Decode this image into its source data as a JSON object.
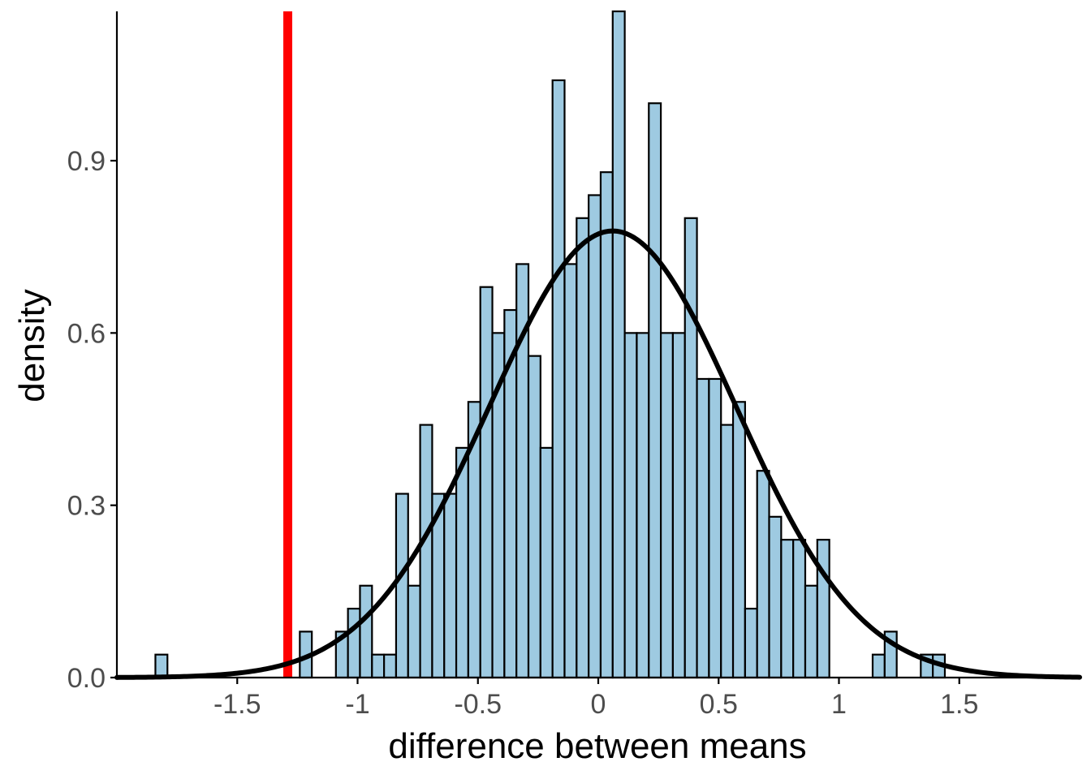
{
  "chart_data": {
    "type": "histogram",
    "xlabel": "difference between means",
    "ylabel": "density",
    "xlim": [
      -2.0,
      2.0
    ],
    "ylim": [
      0,
      1.16
    ],
    "x_ticks": [
      -1.5,
      -1,
      -0.5,
      0,
      0.5,
      1,
      1.5
    ],
    "x_tick_labels": [
      "-1.5",
      "-1",
      "-0.5",
      "0",
      "0.5",
      "1",
      "1.5"
    ],
    "y_ticks": [
      0,
      0.3,
      0.6,
      0.9
    ],
    "y_tick_labels": [
      "0.0",
      "0.3",
      "0.6",
      "0.9"
    ],
    "grid": false,
    "bin_width": 0.05,
    "bins": [
      {
        "x0": -1.84,
        "density": 0.04
      },
      {
        "x0": -1.24,
        "density": 0.08
      },
      {
        "x0": -1.09,
        "density": 0.08
      },
      {
        "x0": -1.04,
        "density": 0.12
      },
      {
        "x0": -0.99,
        "density": 0.16
      },
      {
        "x0": -0.94,
        "density": 0.04
      },
      {
        "x0": -0.89,
        "density": 0.04
      },
      {
        "x0": -0.84,
        "density": 0.32
      },
      {
        "x0": -0.79,
        "density": 0.16
      },
      {
        "x0": -0.74,
        "density": 0.44
      },
      {
        "x0": -0.69,
        "density": 0.32
      },
      {
        "x0": -0.64,
        "density": 0.32
      },
      {
        "x0": -0.59,
        "density": 0.4
      },
      {
        "x0": -0.54,
        "density": 0.48
      },
      {
        "x0": -0.49,
        "density": 0.68
      },
      {
        "x0": -0.44,
        "density": 0.6
      },
      {
        "x0": -0.39,
        "density": 0.64
      },
      {
        "x0": -0.34,
        "density": 0.72
      },
      {
        "x0": -0.29,
        "density": 0.56
      },
      {
        "x0": -0.24,
        "density": 0.4
      },
      {
        "x0": -0.19,
        "density": 1.04
      },
      {
        "x0": -0.14,
        "density": 0.72
      },
      {
        "x0": -0.09,
        "density": 0.8
      },
      {
        "x0": -0.04,
        "density": 0.84
      },
      {
        "x0": 0.01,
        "density": 0.88
      },
      {
        "x0": 0.06,
        "density": 1.16
      },
      {
        "x0": 0.11,
        "density": 0.6
      },
      {
        "x0": 0.16,
        "density": 0.6
      },
      {
        "x0": 0.21,
        "density": 1.0
      },
      {
        "x0": 0.26,
        "density": 0.6
      },
      {
        "x0": 0.31,
        "density": 0.6
      },
      {
        "x0": 0.36,
        "density": 0.8
      },
      {
        "x0": 0.41,
        "density": 0.52
      },
      {
        "x0": 0.46,
        "density": 0.52
      },
      {
        "x0": 0.51,
        "density": 0.44
      },
      {
        "x0": 0.56,
        "density": 0.48
      },
      {
        "x0": 0.61,
        "density": 0.12
      },
      {
        "x0": 0.66,
        "density": 0.36
      },
      {
        "x0": 0.71,
        "density": 0.28
      },
      {
        "x0": 0.76,
        "density": 0.24
      },
      {
        "x0": 0.81,
        "density": 0.24
      },
      {
        "x0": 0.86,
        "density": 0.16
      },
      {
        "x0": 0.91,
        "density": 0.24
      },
      {
        "x0": 1.14,
        "density": 0.04
      },
      {
        "x0": 1.19,
        "density": 0.08
      },
      {
        "x0": 1.34,
        "density": 0.04
      },
      {
        "x0": 1.39,
        "density": 0.04
      }
    ],
    "density_curve": {
      "type": "normal",
      "mean": 0.06,
      "sd": 0.513
    },
    "vline": {
      "x": -1.29
    },
    "colors": {
      "bar_fill": "#9ecae1",
      "bar_stroke": "#000000",
      "curve": "#000000",
      "vline": "#ff0000",
      "axis": "#000000",
      "tick_label": "#4d4d4d"
    }
  }
}
